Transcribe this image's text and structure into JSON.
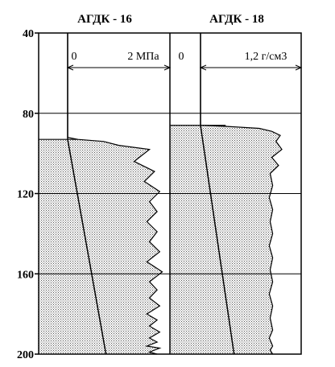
{
  "chart_data": {
    "type": "line",
    "y_axis": {
      "range": [
        40,
        200
      ],
      "ticks": [
        40,
        80,
        120,
        160,
        200
      ],
      "inverted": true
    },
    "panels": [
      {
        "title": "АГДК - 16",
        "scale_min_label": "0",
        "scale_max_label": "2 МПа",
        "x_range": [
          0,
          2
        ],
        "fill_top_depth": 93,
        "reference_line": {
          "x_top": 0.0,
          "x_bottom": 0.75
        },
        "series": {
          "x": [
            0.0,
            0.0,
            0.2,
            0.7,
            1.0,
            1.6,
            1.3,
            1.7,
            1.5,
            1.8,
            1.6,
            1.75,
            1.55,
            1.75,
            1.6,
            1.8,
            1.55,
            1.85,
            1.6,
            1.75,
            1.6,
            1.8,
            1.55,
            1.75,
            1.6,
            1.8,
            1.6,
            1.75,
            1.55,
            1.8,
            1.6,
            1.75
          ],
          "y": [
            40,
            92,
            93,
            94,
            96,
            98,
            104,
            109,
            114,
            119,
            124,
            129,
            134,
            139,
            144,
            149,
            154,
            159,
            164,
            168,
            172,
            176,
            180,
            183,
            186,
            189,
            192,
            194,
            196,
            197,
            199,
            200
          ]
        }
      },
      {
        "title": "АГДК - 18",
        "scale_min_label": "0",
        "scale_max_label": "1,2 г/см3",
        "x_range": [
          0,
          1.2
        ],
        "fill_top_depth": 86,
        "reference_line": {
          "x_top": 0.0,
          "x_bottom": 0.4
        },
        "series": {
          "x": [
            0.0,
            0.0,
            0.3,
            0.7,
            0.85,
            0.95,
            0.9,
            0.97,
            0.85,
            0.93,
            0.83,
            0.86,
            0.82,
            0.86,
            0.83,
            0.86,
            0.82,
            0.86,
            0.83,
            0.86,
            0.82,
            0.86,
            0.83,
            0.86,
            0.82,
            0.86,
            0.83,
            0.86
          ],
          "y": [
            40,
            86,
            86.5,
            87.5,
            89,
            91,
            94,
            98,
            102,
            106,
            110,
            116,
            122,
            128,
            134,
            140,
            146,
            152,
            158,
            164,
            170,
            176,
            182,
            188,
            192,
            196,
            198,
            200
          ]
        }
      }
    ],
    "hlines": [
      80,
      120,
      160
    ],
    "colors": {
      "fill": "#b8b8b8",
      "line": "#000000"
    }
  }
}
